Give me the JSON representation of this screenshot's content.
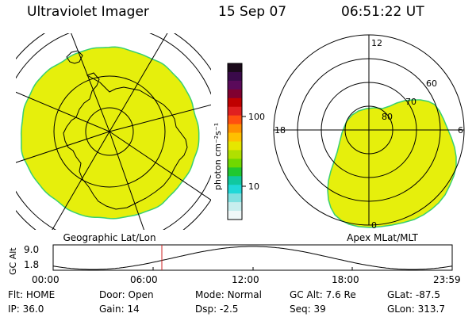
{
  "header": {
    "instrument": "Ultraviolet Imager",
    "date": "15 Sep 07",
    "time": "06:51:22 UT"
  },
  "geo_panel": {
    "label": "Geographic Lat/Lon"
  },
  "apex_panel": {
    "label": "Apex MLat/MLT",
    "mlt_labels": {
      "top": "12",
      "left": "18",
      "right": "6",
      "bottom": "0"
    },
    "lat_labels": [
      "60",
      "70",
      "80"
    ]
  },
  "colorbar": {
    "unit_label": "photon cm⁻²s⁻¹",
    "ticks": [
      "100",
      "10"
    ],
    "colors": [
      "#1a0a1a",
      "#3a0a4a",
      "#5a0a5a",
      "#800030",
      "#c00000",
      "#e02020",
      "#ff5010",
      "#ff9000",
      "#ffc000",
      "#e6e600",
      "#b0e000",
      "#70d800",
      "#20c830",
      "#10c8a0",
      "#20d8d8",
      "#80e0e0",
      "#c8eeee",
      "#f0f8f8"
    ]
  },
  "altitude_plot": {
    "y_label": "GC Alt",
    "y_ticks": [
      "9.0",
      "1.8"
    ],
    "x_ticks": [
      "00:00",
      "06:00",
      "12:00",
      "18:00",
      "23:59"
    ]
  },
  "status": {
    "row1": [
      {
        "key": "Flt:",
        "value": "HOME"
      },
      {
        "key": "Door:",
        "value": "Open"
      },
      {
        "key": "Mode:",
        "value": "Normal"
      },
      {
        "key": "GC Alt:",
        "value": "7.6 Re"
      },
      {
        "key": "GLat:",
        "value": "-87.5"
      }
    ],
    "row2": [
      {
        "key": "IP:",
        "value": "36.0"
      },
      {
        "key": "Gain:",
        "value": "14"
      },
      {
        "key": "Dsp:",
        "value": "-2.5"
      },
      {
        "key": "Seq:",
        "value": "39"
      },
      {
        "key": "GLon:",
        "value": "313.7"
      }
    ]
  },
  "colors": {
    "aurora_fill": "#e6ef0c",
    "aurora_edge": "#38d070",
    "marker": "#cc2020"
  }
}
